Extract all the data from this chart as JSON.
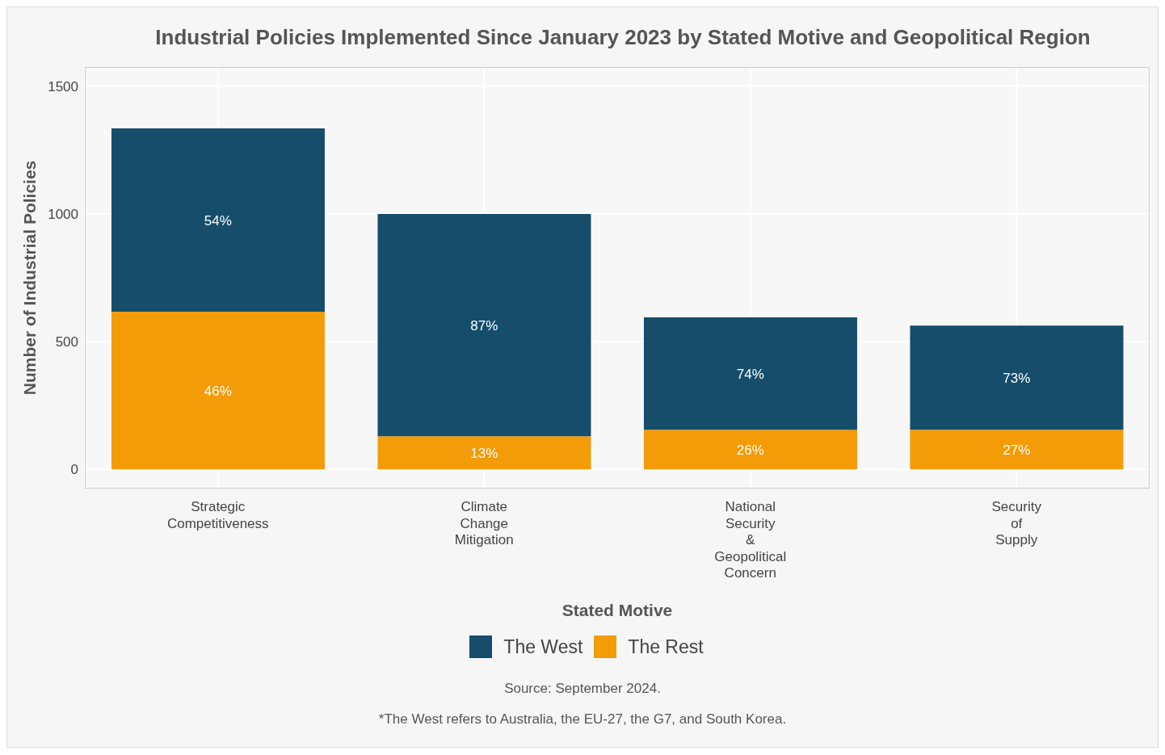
{
  "chart_data": {
    "type": "bar",
    "stacked": true,
    "title": "Industrial Policies Implemented Since January 2023 by Stated Motive and Geopolitical Region",
    "xlabel": "Stated Motive",
    "ylabel": "Number of Industrial Policies",
    "categories": [
      "Strategic\nCompetitiveness",
      "Climate\nChange\nMitigation",
      "National\nSecurity\n&\nGeopolitical\nConcern",
      "Security\nof\nSupply"
    ],
    "series": [
      {
        "name": "The Rest",
        "color": "#f39c07",
        "values": [
          617,
          130,
          155,
          155
        ]
      },
      {
        "name": "The West",
        "color": "#154d6b",
        "values": [
          718,
          870,
          440,
          408
        ]
      }
    ],
    "ylim": [
      -75,
      1575
    ],
    "yticks": [
      0,
      500,
      1000,
      1500
    ],
    "grid": true,
    "legend": "bottom",
    "annotations": [
      "46%",
      "54%",
      "13%",
      "87%",
      "26%",
      "74%",
      "27%",
      "73%",
      "Source: September 2024.",
      "*The West refers to Australia, the EU-27, the G7, and South Korea."
    ]
  }
}
